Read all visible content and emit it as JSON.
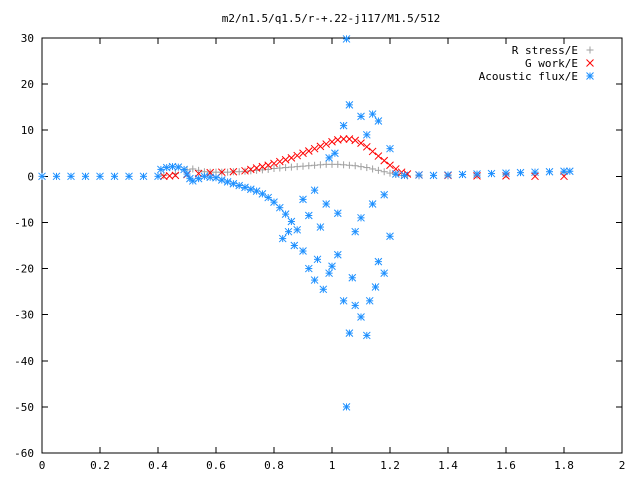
{
  "chart_data": {
    "type": "scatter",
    "title": "m2/n1.5/q1.5/r-+.22-j117/M1.5/512",
    "xlabel": "",
    "ylabel": "",
    "xlim": [
      0,
      2
    ],
    "ylim": [
      -60,
      30
    ],
    "xticks": [
      0,
      0.2,
      0.4,
      0.6,
      0.8,
      1,
      1.2,
      1.4,
      1.6,
      1.8,
      2
    ],
    "xtick_labels": [
      "0",
      "0.2",
      "0.4",
      "0.6",
      "0.8",
      "1",
      "1.2",
      "1.4",
      "1.6",
      "1.8",
      "2"
    ],
    "yticks": [
      -60,
      -50,
      -40,
      -30,
      -20,
      -10,
      0,
      10,
      20,
      30
    ],
    "ytick_labels": [
      "-60",
      "-50",
      "-40",
      "-30",
      "-20",
      "-10",
      "0",
      "10",
      "20",
      "30"
    ],
    "grid": false,
    "legend_position": "top-right",
    "series": [
      {
        "name": "R stress/E",
        "marker": "plus",
        "color": "#a0a0a0",
        "points": [
          [
            0.42,
            0.2
          ],
          [
            0.46,
            0.6
          ],
          [
            0.5,
            1.4
          ],
          [
            0.52,
            1.6
          ],
          [
            0.54,
            1.3
          ],
          [
            0.56,
            1.0
          ],
          [
            0.58,
            0.9
          ],
          [
            0.6,
            0.9
          ],
          [
            0.62,
            0.9
          ],
          [
            0.64,
            0.9
          ],
          [
            0.66,
            1.0
          ],
          [
            0.68,
            1.0
          ],
          [
            0.7,
            1.1
          ],
          [
            0.72,
            1.2
          ],
          [
            0.74,
            1.3
          ],
          [
            0.76,
            1.4
          ],
          [
            0.78,
            1.5
          ],
          [
            0.8,
            1.7
          ],
          [
            0.82,
            1.8
          ],
          [
            0.84,
            1.9
          ],
          [
            0.86,
            2.0
          ],
          [
            0.88,
            2.1
          ],
          [
            0.9,
            2.2
          ],
          [
            0.92,
            2.3
          ],
          [
            0.94,
            2.4
          ],
          [
            0.96,
            2.5
          ],
          [
            0.98,
            2.6
          ],
          [
            1.0,
            2.6
          ],
          [
            1.02,
            2.6
          ],
          [
            1.04,
            2.5
          ],
          [
            1.06,
            2.4
          ],
          [
            1.08,
            2.3
          ],
          [
            1.1,
            2.1
          ],
          [
            1.12,
            1.9
          ],
          [
            1.14,
            1.6
          ],
          [
            1.16,
            1.3
          ],
          [
            1.18,
            1.0
          ],
          [
            1.2,
            0.7
          ],
          [
            1.22,
            0.4
          ],
          [
            1.24,
            0.2
          ],
          [
            1.26,
            0.1
          ],
          [
            1.3,
            0.1
          ],
          [
            1.4,
            0.1
          ],
          [
            1.5,
            0.2
          ],
          [
            1.6,
            0.4
          ],
          [
            1.7,
            0.6
          ],
          [
            1.8,
            0.8
          ]
        ]
      },
      {
        "name": "G work/E",
        "marker": "cross",
        "color": "#ff0000",
        "points": [
          [
            0.42,
            0.0
          ],
          [
            0.44,
            0.1
          ],
          [
            0.46,
            0.2
          ],
          [
            0.5,
            0.4
          ],
          [
            0.54,
            0.6
          ],
          [
            0.58,
            0.8
          ],
          [
            0.62,
            0.9
          ],
          [
            0.66,
            1.0
          ],
          [
            0.7,
            1.2
          ],
          [
            0.72,
            1.5
          ],
          [
            0.74,
            1.8
          ],
          [
            0.76,
            2.1
          ],
          [
            0.78,
            2.4
          ],
          [
            0.8,
            2.8
          ],
          [
            0.82,
            3.2
          ],
          [
            0.84,
            3.6
          ],
          [
            0.86,
            4.0
          ],
          [
            0.88,
            4.5
          ],
          [
            0.9,
            5.0
          ],
          [
            0.92,
            5.5
          ],
          [
            0.94,
            6.0
          ],
          [
            0.96,
            6.5
          ],
          [
            0.98,
            7.0
          ],
          [
            1.0,
            7.5
          ],
          [
            1.02,
            7.9
          ],
          [
            1.04,
            8.1
          ],
          [
            1.06,
            8.1
          ],
          [
            1.08,
            7.8
          ],
          [
            1.1,
            7.2
          ],
          [
            1.12,
            6.4
          ],
          [
            1.14,
            5.4
          ],
          [
            1.16,
            4.4
          ],
          [
            1.18,
            3.4
          ],
          [
            1.2,
            2.4
          ],
          [
            1.22,
            1.6
          ],
          [
            1.24,
            0.9
          ],
          [
            1.26,
            0.5
          ],
          [
            1.3,
            0.3
          ],
          [
            1.4,
            0.2
          ],
          [
            1.5,
            0.1
          ],
          [
            1.6,
            0.1
          ],
          [
            1.7,
            0.0
          ],
          [
            1.8,
            0.0
          ]
        ]
      },
      {
        "name": "Acoustic flux/E",
        "marker": "star",
        "color": "#1e90ff",
        "points": [
          [
            0.0,
            0.0
          ],
          [
            0.05,
            0.0
          ],
          [
            0.1,
            0.0
          ],
          [
            0.15,
            0.0
          ],
          [
            0.2,
            0.0
          ],
          [
            0.25,
            0.0
          ],
          [
            0.3,
            0.0
          ],
          [
            0.35,
            0.0
          ],
          [
            0.4,
            0.0
          ],
          [
            0.41,
            1.5
          ],
          [
            0.43,
            1.9
          ],
          [
            0.45,
            2.1
          ],
          [
            0.47,
            2.0
          ],
          [
            0.49,
            1.5
          ],
          [
            0.5,
            0.5
          ],
          [
            0.51,
            -0.5
          ],
          [
            0.52,
            -1.0
          ],
          [
            0.54,
            -0.5
          ],
          [
            0.56,
            0.0
          ],
          [
            0.58,
            -0.2
          ],
          [
            0.6,
            -0.3
          ],
          [
            0.62,
            -0.8
          ],
          [
            0.64,
            -1.2
          ],
          [
            0.66,
            -1.6
          ],
          [
            0.68,
            -2.0
          ],
          [
            0.7,
            -2.4
          ],
          [
            0.72,
            -2.8
          ],
          [
            0.74,
            -3.2
          ],
          [
            0.76,
            -3.8
          ],
          [
            0.78,
            -4.6
          ],
          [
            0.8,
            -5.6
          ],
          [
            0.82,
            -6.8
          ],
          [
            0.84,
            -8.2
          ],
          [
            0.86,
            -9.8
          ],
          [
            0.88,
            -11.6
          ],
          [
            0.83,
            -13.5
          ],
          [
            0.85,
            -12.0
          ],
          [
            0.87,
            -15.0
          ],
          [
            0.9,
            -16.2
          ],
          [
            0.92,
            -20.0
          ],
          [
            0.94,
            -22.5
          ],
          [
            0.95,
            -18.0
          ],
          [
            0.97,
            -24.5
          ],
          [
            0.99,
            -21.0
          ],
          [
            1.0,
            -19.5
          ],
          [
            1.02,
            -17.0
          ],
          [
            1.04,
            -27.0
          ],
          [
            1.05,
            -50.0
          ],
          [
            1.06,
            -34.0
          ],
          [
            1.07,
            -22.0
          ],
          [
            1.08,
            -28.0
          ],
          [
            1.1,
            -30.5
          ],
          [
            1.12,
            -34.5
          ],
          [
            1.13,
            -27.0
          ],
          [
            1.15,
            -24.0
          ],
          [
            1.16,
            -18.5
          ],
          [
            1.18,
            -21.0
          ],
          [
            1.2,
            -13.0
          ],
          [
            1.05,
            29.8
          ],
          [
            1.06,
            15.5
          ],
          [
            1.04,
            11.0
          ],
          [
            1.1,
            13.0
          ],
          [
            1.12,
            9.0
          ],
          [
            1.14,
            13.5
          ],
          [
            1.16,
            12.0
          ],
          [
            1.2,
            6.0
          ],
          [
            1.18,
            -4.0
          ],
          [
            1.14,
            -6.0
          ],
          [
            1.1,
            -9.0
          ],
          [
            1.08,
            -12.0
          ],
          [
            1.02,
            -8.0
          ],
          [
            0.98,
            -6.0
          ],
          [
            0.96,
            -11.0
          ],
          [
            0.92,
            -8.5
          ],
          [
            0.9,
            -5.0
          ],
          [
            0.94,
            -3.0
          ],
          [
            0.99,
            4.0
          ],
          [
            1.01,
            5.0
          ],
          [
            1.22,
            0.5
          ],
          [
            1.25,
            0.2
          ],
          [
            1.3,
            0.3
          ],
          [
            1.35,
            0.2
          ],
          [
            1.4,
            0.3
          ],
          [
            1.45,
            0.4
          ],
          [
            1.5,
            0.5
          ],
          [
            1.55,
            0.6
          ],
          [
            1.6,
            0.7
          ],
          [
            1.65,
            0.8
          ],
          [
            1.7,
            0.9
          ],
          [
            1.75,
            1.0
          ],
          [
            1.8,
            1.1
          ],
          [
            1.82,
            1.1
          ]
        ]
      }
    ]
  }
}
